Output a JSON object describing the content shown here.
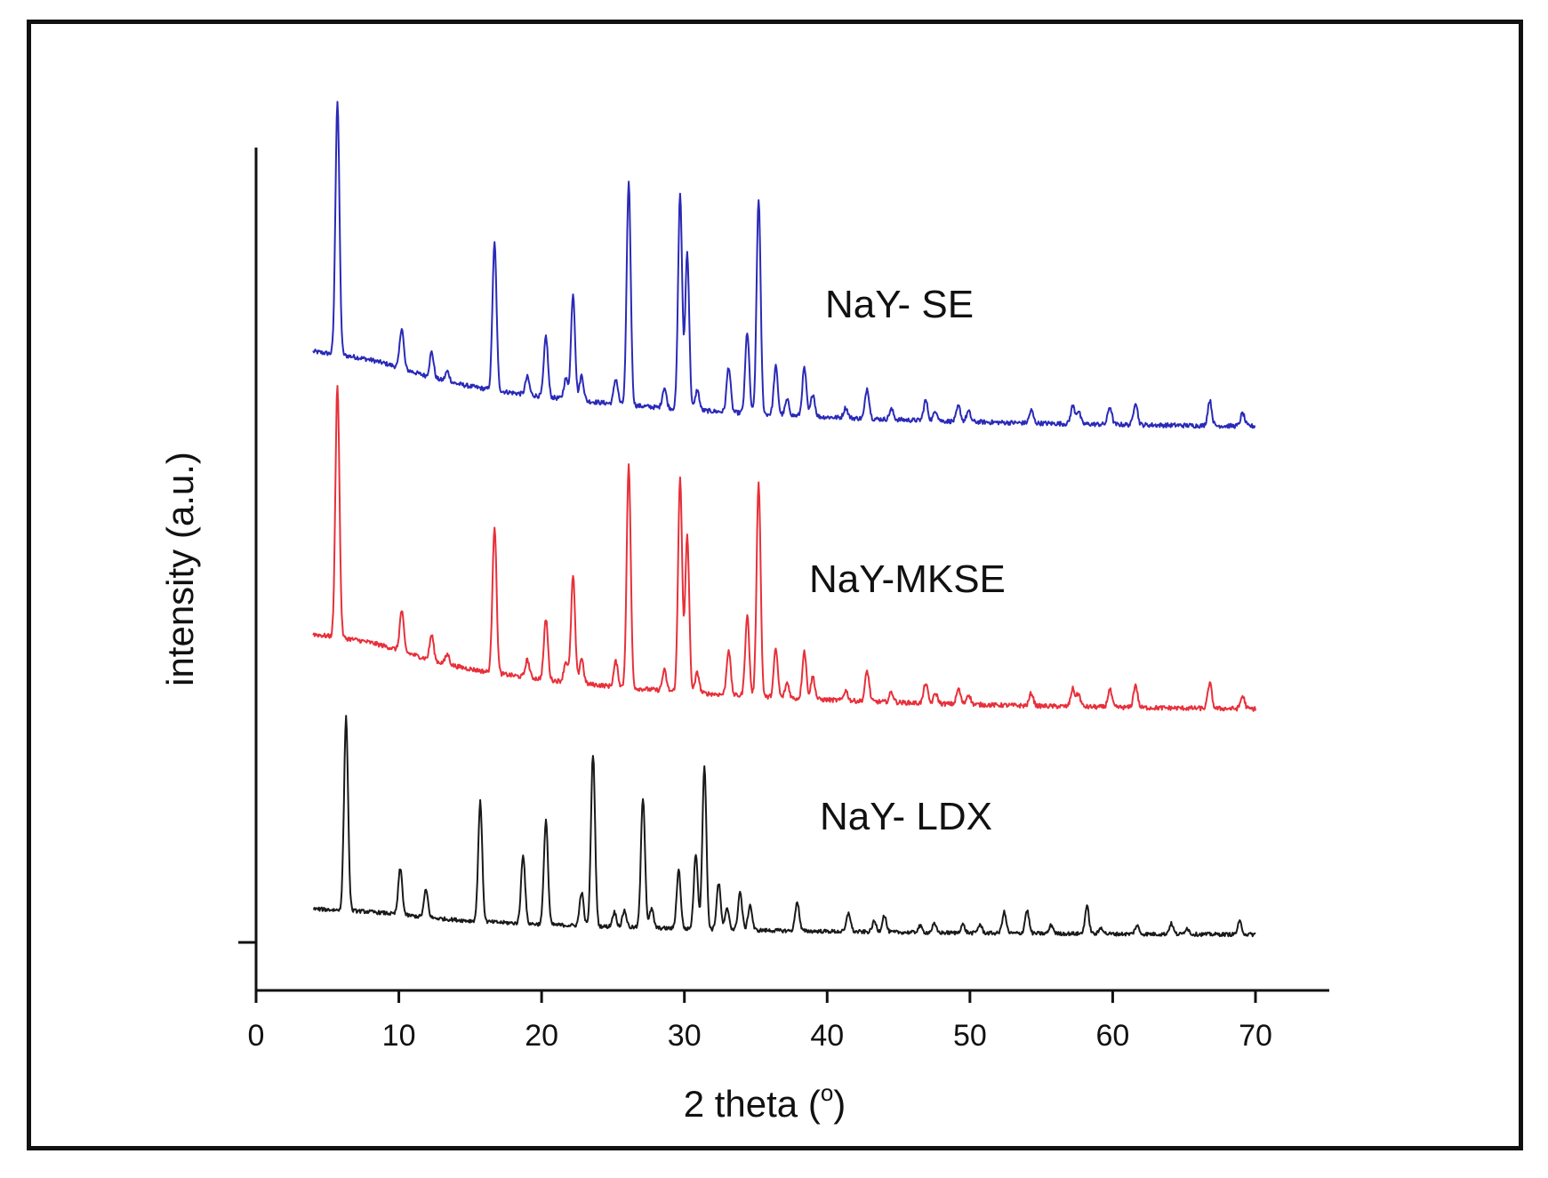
{
  "chart_data": {
    "type": "line",
    "title": "",
    "xlabel": "2 theta (",
    "xlabel_sup": "o",
    "xlabel_tail": ")",
    "ylabel": "intensity (a.u.)",
    "xlim": [
      0,
      75
    ],
    "x_ticks": [
      0,
      10,
      20,
      30,
      40,
      50,
      60,
      70
    ],
    "x_tick_labels": [
      "0",
      "10",
      "20",
      "30",
      "40",
      "50",
      "60",
      "70"
    ],
    "y_ticks_labeled": false,
    "legend": "inline labels beside each trace",
    "series": [
      {
        "name": "NaY- SE",
        "color": "#2a2ab8",
        "x_range": [
          4,
          70
        ],
        "baseline_start": 0.29,
        "baseline_end": 0.0,
        "peaks": [
          {
            "x": 5.7,
            "h": 1.0
          },
          {
            "x": 10.2,
            "h": 0.16
          },
          {
            "x": 12.3,
            "h": 0.1
          },
          {
            "x": 13.4,
            "h": 0.04
          },
          {
            "x": 16.7,
            "h": 0.58
          },
          {
            "x": 19.0,
            "h": 0.07
          },
          {
            "x": 20.3,
            "h": 0.24
          },
          {
            "x": 21.7,
            "h": 0.08
          },
          {
            "x": 22.2,
            "h": 0.42
          },
          {
            "x": 22.8,
            "h": 0.1
          },
          {
            "x": 25.2,
            "h": 0.1
          },
          {
            "x": 26.1,
            "h": 0.88
          },
          {
            "x": 28.6,
            "h": 0.08
          },
          {
            "x": 29.7,
            "h": 0.85
          },
          {
            "x": 30.2,
            "h": 0.62
          },
          {
            "x": 30.9,
            "h": 0.08
          },
          {
            "x": 33.1,
            "h": 0.18
          },
          {
            "x": 34.4,
            "h": 0.32
          },
          {
            "x": 35.2,
            "h": 0.85
          },
          {
            "x": 36.4,
            "h": 0.19
          },
          {
            "x": 37.2,
            "h": 0.06
          },
          {
            "x": 38.4,
            "h": 0.19
          },
          {
            "x": 39.0,
            "h": 0.09
          },
          {
            "x": 41.3,
            "h": 0.04
          },
          {
            "x": 42.8,
            "h": 0.12
          },
          {
            "x": 44.5,
            "h": 0.04
          },
          {
            "x": 46.9,
            "h": 0.08
          },
          {
            "x": 47.6,
            "h": 0.04
          },
          {
            "x": 49.2,
            "h": 0.06
          },
          {
            "x": 49.9,
            "h": 0.04
          },
          {
            "x": 54.3,
            "h": 0.05
          },
          {
            "x": 57.2,
            "h": 0.07
          },
          {
            "x": 57.6,
            "h": 0.05
          },
          {
            "x": 59.8,
            "h": 0.07
          },
          {
            "x": 61.6,
            "h": 0.09
          },
          {
            "x": 66.8,
            "h": 0.1
          },
          {
            "x": 69.1,
            "h": 0.05
          }
        ]
      },
      {
        "name": "NaY-MKSE",
        "color": "#e8303a",
        "x_range": [
          4,
          70
        ],
        "baseline_start": 0.29,
        "baseline_end": 0.0,
        "peaks": [
          {
            "x": 5.7,
            "h": 1.0
          },
          {
            "x": 10.2,
            "h": 0.16
          },
          {
            "x": 12.3,
            "h": 0.1
          },
          {
            "x": 13.4,
            "h": 0.04
          },
          {
            "x": 16.7,
            "h": 0.58
          },
          {
            "x": 19.0,
            "h": 0.07
          },
          {
            "x": 20.3,
            "h": 0.24
          },
          {
            "x": 21.7,
            "h": 0.08
          },
          {
            "x": 22.2,
            "h": 0.42
          },
          {
            "x": 22.8,
            "h": 0.1
          },
          {
            "x": 25.2,
            "h": 0.1
          },
          {
            "x": 26.1,
            "h": 0.88
          },
          {
            "x": 28.6,
            "h": 0.08
          },
          {
            "x": 29.7,
            "h": 0.85
          },
          {
            "x": 30.2,
            "h": 0.62
          },
          {
            "x": 30.9,
            "h": 0.08
          },
          {
            "x": 33.1,
            "h": 0.18
          },
          {
            "x": 34.4,
            "h": 0.32
          },
          {
            "x": 35.2,
            "h": 0.85
          },
          {
            "x": 36.4,
            "h": 0.19
          },
          {
            "x": 37.2,
            "h": 0.06
          },
          {
            "x": 38.4,
            "h": 0.19
          },
          {
            "x": 39.0,
            "h": 0.09
          },
          {
            "x": 41.3,
            "h": 0.04
          },
          {
            "x": 42.8,
            "h": 0.12
          },
          {
            "x": 44.5,
            "h": 0.04
          },
          {
            "x": 46.9,
            "h": 0.08
          },
          {
            "x": 47.6,
            "h": 0.04
          },
          {
            "x": 49.2,
            "h": 0.06
          },
          {
            "x": 49.9,
            "h": 0.04
          },
          {
            "x": 54.3,
            "h": 0.05
          },
          {
            "x": 57.2,
            "h": 0.07
          },
          {
            "x": 57.6,
            "h": 0.05
          },
          {
            "x": 59.8,
            "h": 0.07
          },
          {
            "x": 61.6,
            "h": 0.09
          },
          {
            "x": 66.8,
            "h": 0.1
          },
          {
            "x": 69.1,
            "h": 0.05
          }
        ]
      },
      {
        "name": "NaY- LDX",
        "color": "#1a1a1a",
        "x_range": [
          4,
          70
        ],
        "baseline_start": 0.12,
        "baseline_end": 0.0,
        "peaks": [
          {
            "x": 6.3,
            "h": 0.92
          },
          {
            "x": 10.1,
            "h": 0.22
          },
          {
            "x": 11.9,
            "h": 0.13
          },
          {
            "x": 15.7,
            "h": 0.57
          },
          {
            "x": 18.7,
            "h": 0.33
          },
          {
            "x": 20.3,
            "h": 0.5
          },
          {
            "x": 22.8,
            "h": 0.16
          },
          {
            "x": 23.6,
            "h": 0.82
          },
          {
            "x": 25.1,
            "h": 0.07
          },
          {
            "x": 25.8,
            "h": 0.08
          },
          {
            "x": 27.1,
            "h": 0.62
          },
          {
            "x": 27.7,
            "h": 0.09
          },
          {
            "x": 29.6,
            "h": 0.28
          },
          {
            "x": 30.8,
            "h": 0.36
          },
          {
            "x": 31.4,
            "h": 0.78
          },
          {
            "x": 32.4,
            "h": 0.22
          },
          {
            "x": 33.0,
            "h": 0.1
          },
          {
            "x": 33.9,
            "h": 0.18
          },
          {
            "x": 34.6,
            "h": 0.12
          },
          {
            "x": 37.9,
            "h": 0.14
          },
          {
            "x": 41.5,
            "h": 0.09
          },
          {
            "x": 43.3,
            "h": 0.05
          },
          {
            "x": 44.0,
            "h": 0.08
          },
          {
            "x": 46.5,
            "h": 0.03
          },
          {
            "x": 47.5,
            "h": 0.04
          },
          {
            "x": 49.5,
            "h": 0.04
          },
          {
            "x": 50.7,
            "h": 0.04
          },
          {
            "x": 52.4,
            "h": 0.1
          },
          {
            "x": 54.0,
            "h": 0.11
          },
          {
            "x": 55.7,
            "h": 0.04
          },
          {
            "x": 58.2,
            "h": 0.13
          },
          {
            "x": 59.2,
            "h": 0.03
          },
          {
            "x": 61.7,
            "h": 0.04
          },
          {
            "x": 64.1,
            "h": 0.05
          },
          {
            "x": 65.2,
            "h": 0.03
          },
          {
            "x": 68.9,
            "h": 0.06
          }
        ]
      }
    ]
  }
}
